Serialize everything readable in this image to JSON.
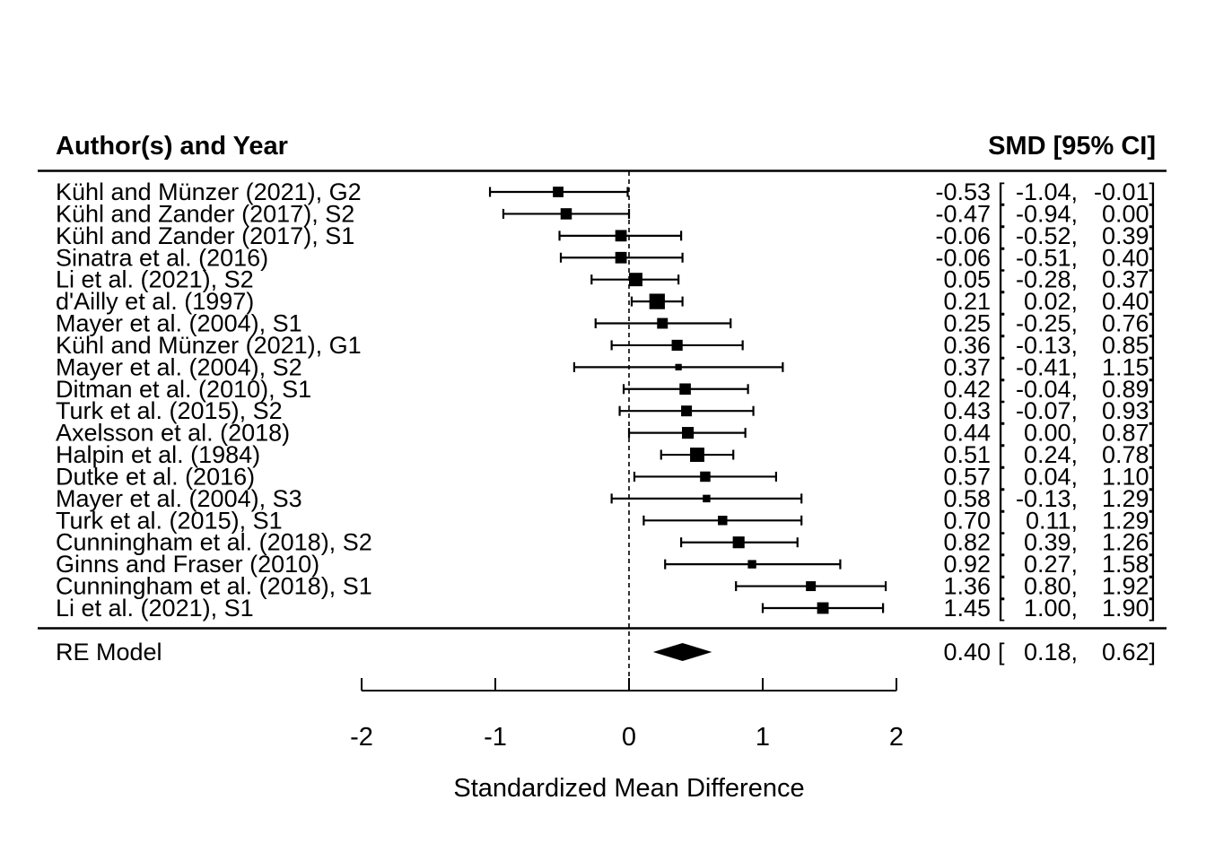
{
  "chart_data": {
    "type": "forest",
    "title": "",
    "headers": {
      "left": "Author(s) and Year",
      "right": "SMD [95% CI]"
    },
    "xlabel": "Standardized Mean Difference",
    "xlim": [
      -2.45,
      2.45
    ],
    "axis_ticks": [
      -2,
      -1,
      0,
      1,
      2
    ],
    "zero_reference": 0,
    "grid": false,
    "studies": [
      {
        "label": "Kühl and Münzer (2021), G2",
        "est": -0.53,
        "lo": -1.04,
        "hi": -0.01
      },
      {
        "label": "Kühl and Zander (2017), S2",
        "est": -0.47,
        "lo": -0.94,
        "hi": 0.0
      },
      {
        "label": "Kühl and Zander (2017), S1",
        "est": -0.06,
        "lo": -0.52,
        "hi": 0.39
      },
      {
        "label": "Sinatra et al. (2016)",
        "est": -0.06,
        "lo": -0.51,
        "hi": 0.4
      },
      {
        "label": "Li et al. (2021), S2",
        "est": 0.05,
        "lo": -0.28,
        "hi": 0.37
      },
      {
        "label": "d'Ailly et al. (1997)",
        "est": 0.21,
        "lo": 0.02,
        "hi": 0.4
      },
      {
        "label": "Mayer et al. (2004), S1",
        "est": 0.25,
        "lo": -0.25,
        "hi": 0.76
      },
      {
        "label": "Kühl and Münzer (2021), G1",
        "est": 0.36,
        "lo": -0.13,
        "hi": 0.85
      },
      {
        "label": "Mayer et al. (2004), S2",
        "est": 0.37,
        "lo": -0.41,
        "hi": 1.15
      },
      {
        "label": "Ditman et al. (2010), S1",
        "est": 0.42,
        "lo": -0.04,
        "hi": 0.89
      },
      {
        "label": "Turk et al. (2015), S2",
        "est": 0.43,
        "lo": -0.07,
        "hi": 0.93
      },
      {
        "label": "Axelsson et al. (2018)",
        "est": 0.44,
        "lo": 0.0,
        "hi": 0.87
      },
      {
        "label": "Halpin et al. (1984)",
        "est": 0.51,
        "lo": 0.24,
        "hi": 0.78
      },
      {
        "label": "Dutke et al. (2016)",
        "est": 0.57,
        "lo": 0.04,
        "hi": 1.1
      },
      {
        "label": "Mayer et al. (2004), S3",
        "est": 0.58,
        "lo": -0.13,
        "hi": 1.29
      },
      {
        "label": "Turk et al. (2015), S1",
        "est": 0.7,
        "lo": 0.11,
        "hi": 1.29
      },
      {
        "label": "Cunningham et al. (2018), S2",
        "est": 0.82,
        "lo": 0.39,
        "hi": 1.26
      },
      {
        "label": "Ginns and Fraser (2010)",
        "est": 0.92,
        "lo": 0.27,
        "hi": 1.58
      },
      {
        "label": "Cunningham et al. (2018), S1",
        "est": 1.36,
        "lo": 0.8,
        "hi": 1.92
      },
      {
        "label": "Li et al. (2021), S1",
        "est": 1.45,
        "lo": 1.0,
        "hi": 1.9
      }
    ],
    "summary": {
      "label": "RE Model",
      "est": 0.4,
      "lo": 0.18,
      "hi": 0.62
    }
  }
}
